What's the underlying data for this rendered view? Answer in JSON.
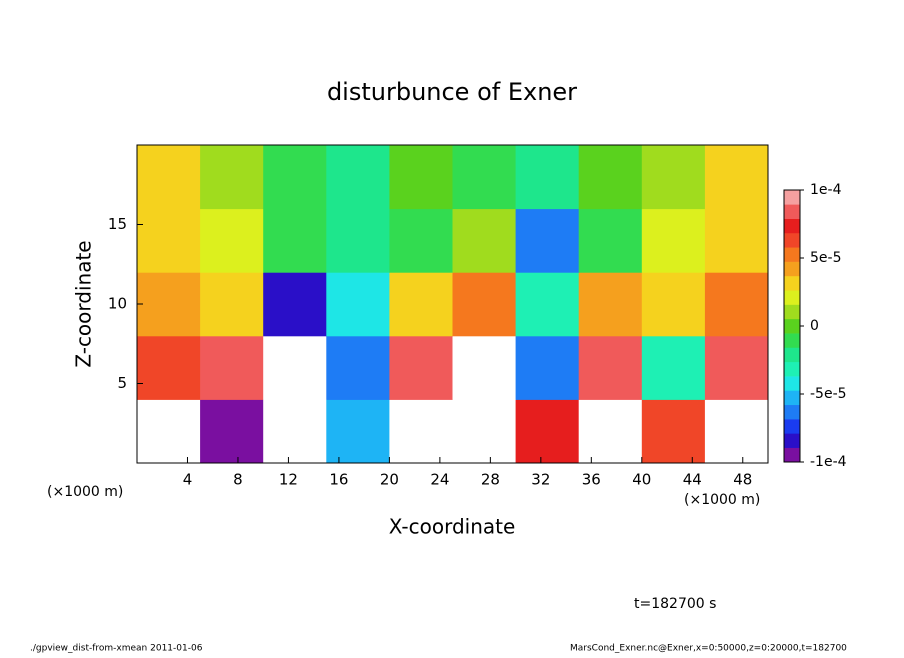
{
  "chart_data": {
    "type": "heatmap",
    "title": "disturbunce of Exner",
    "xlabel": "X-coordinate",
    "ylabel": "Z-coordinate",
    "xunit": "(×1000 m)",
    "yunit": "(×1000 m)",
    "annotation": "t=182700 s",
    "footer_left": "./gpview_dist-from-xmean  2011-01-06",
    "footer_right": "MarsCond_Exner.nc@Exner,x=0:50000,z=0:20000,t=182700",
    "xlim": [
      0,
      50
    ],
    "ylim": [
      0,
      20
    ],
    "xticks": [
      4,
      8,
      12,
      16,
      20,
      24,
      28,
      32,
      36,
      40,
      44,
      48
    ],
    "yticks": [
      5,
      10,
      15
    ],
    "x_bins": [
      0,
      5,
      10,
      15,
      20,
      25,
      30,
      35,
      40,
      45,
      50
    ],
    "y_bins": [
      0,
      4,
      8,
      12,
      16,
      20
    ],
    "values": [
      [
        0.00012,
        -9e-05,
        0.00012,
        -5e-05,
        0.00012,
        0.00012,
        7e-05,
        0.00012,
        6e-05,
        0.00012
      ],
      [
        6e-05,
        8e-05,
        0.00012,
        -6e-05,
        8e-05,
        0.00012,
        -6e-05,
        8e-05,
        -3e-05,
        8e-05
      ],
      [
        4e-05,
        3e-05,
        -8e-05,
        -4e-05,
        3e-05,
        5e-05,
        -3e-05,
        4e-05,
        3e-05,
        5e-05
      ],
      [
        3e-05,
        2e-05,
        -1e-05,
        -2e-05,
        -1e-05,
        1e-05,
        -6e-05,
        -1e-05,
        2e-05,
        3e-05
      ],
      [
        3e-05,
        1e-05,
        -1e-05,
        -2e-05,
        0,
        -1e-05,
        -2e-05,
        0,
        1e-05,
        3e-05
      ]
    ],
    "colorbar": {
      "lim": [
        -0.0001,
        0.0001
      ],
      "ticks": [
        {
          "value": 0.0001,
          "label": "1e-4"
        },
        {
          "value": 5e-05,
          "label": "5e-5"
        },
        0,
        {
          "value": -5e-05,
          "label": "-5e-5"
        },
        {
          "value": -0.0001,
          "label": "-1e-4"
        }
      ],
      "colors": [
        "#7a0fa0",
        "#2a0fc8",
        "#1a3cf0",
        "#1e7cf5",
        "#1eb4f5",
        "#1ee6e6",
        "#1ef0b4",
        "#1ee68c",
        "#32dc50",
        "#5ad21e",
        "#a0dc1e",
        "#dcf01e",
        "#f5d21e",
        "#f5a01e",
        "#f5781e",
        "#f04628",
        "#e61e1e",
        "#f05a5a",
        "#f5a0a0"
      ],
      "out_color": "#ffffff"
    }
  }
}
